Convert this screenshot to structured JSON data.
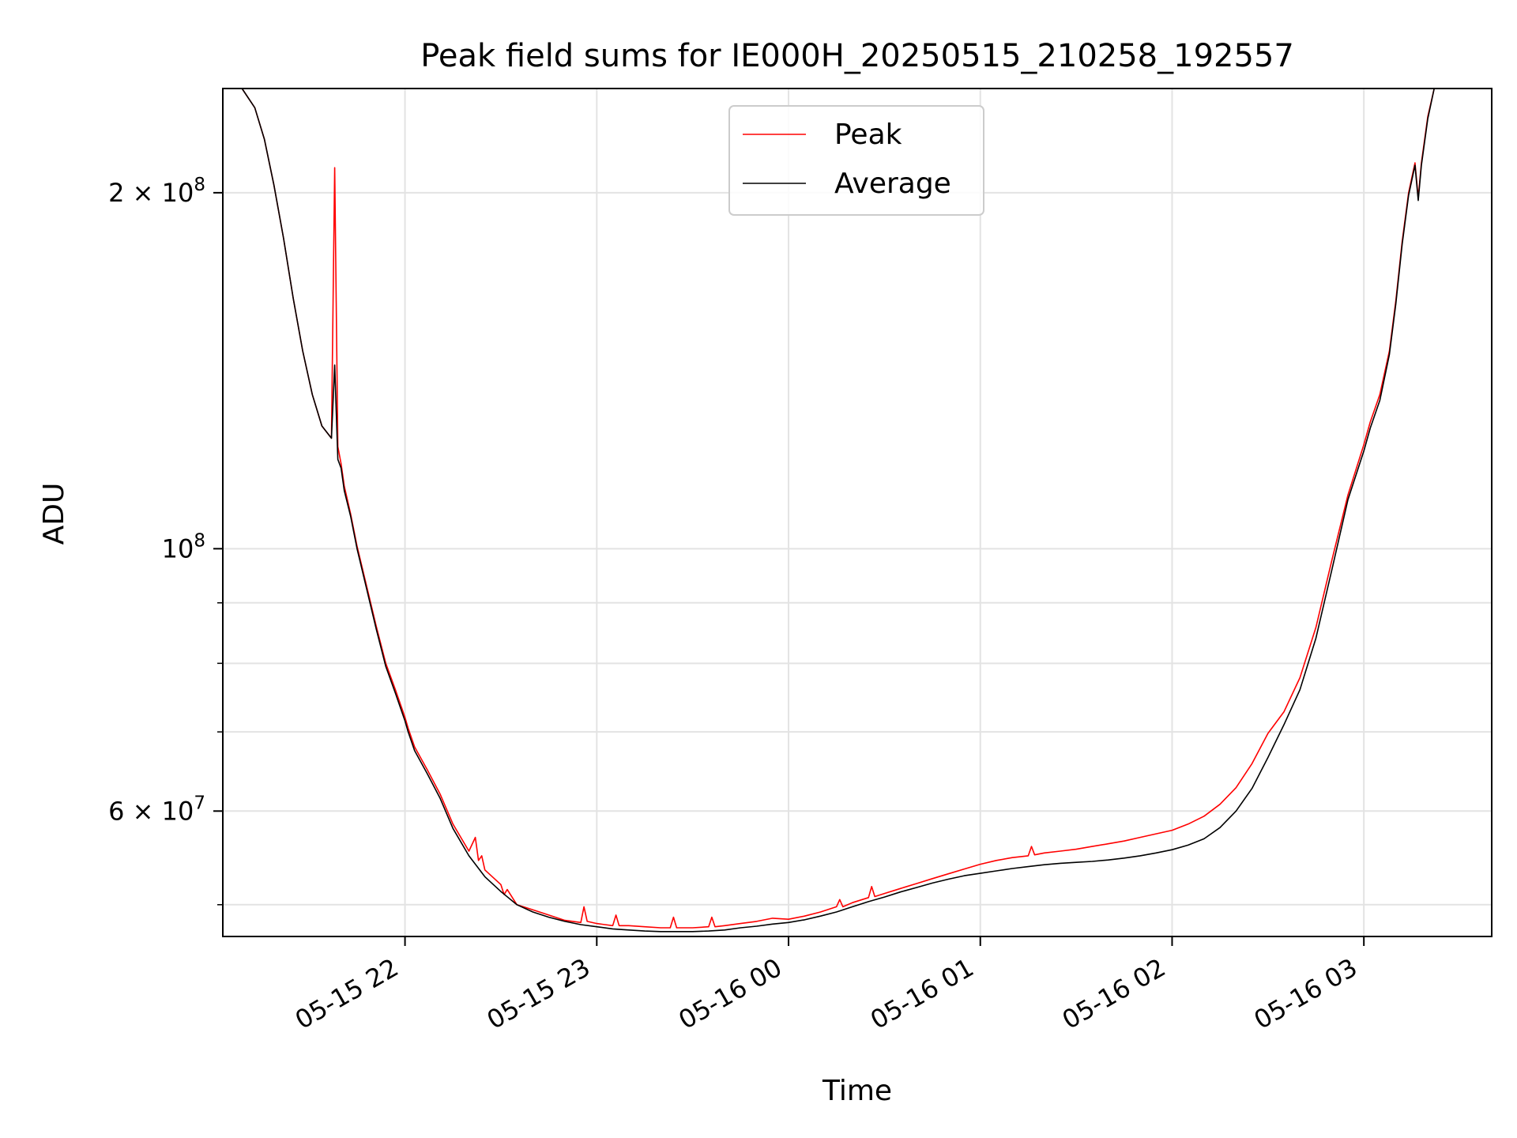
{
  "chart_data": {
    "type": "line",
    "title": "Peak field sums for IE000H_20250515_210258_192557",
    "xlabel": "Time",
    "ylabel": "ADU",
    "y_scale": "log",
    "xlim": [
      "2025-05-15T21:03",
      "2025-05-16T03:40"
    ],
    "ylim": [
      47000000,
      245000000
    ],
    "x_ticks": [
      {
        "value": "2025-05-15T22:00",
        "label": "05-15 22"
      },
      {
        "value": "2025-05-15T23:00",
        "label": "05-15 23"
      },
      {
        "value": "2025-05-16T00:00",
        "label": "05-16 00"
      },
      {
        "value": "2025-05-16T01:00",
        "label": "05-16 01"
      },
      {
        "value": "2025-05-16T02:00",
        "label": "05-16 02"
      },
      {
        "value": "2025-05-16T03:00",
        "label": "05-16 03"
      }
    ],
    "y_ticks": [
      {
        "value": 200000000,
        "mantissa": "2",
        "exponent": "8"
      },
      {
        "value": 100000000,
        "mantissa": "",
        "exponent": "8"
      },
      {
        "value": 60000000,
        "mantissa": "6",
        "exponent": "7"
      }
    ],
    "y_minor_grid": [
      50000000,
      70000000,
      80000000,
      90000000
    ],
    "grid": true,
    "legend_position": "top-center",
    "series": [
      {
        "name": "Peak",
        "color": "#ff0000",
        "x": [
          "2025-05-15T21:09",
          "2025-05-15T21:13",
          "2025-05-15T21:16",
          "2025-05-15T21:19",
          "2025-05-15T21:22",
          "2025-05-15T21:25",
          "2025-05-15T21:28",
          "2025-05-15T21:31",
          "2025-05-15T21:34",
          "2025-05-15T21:37",
          "2025-05-15T21:38",
          "2025-05-15T21:39",
          "2025-05-15T21:40",
          "2025-05-15T21:41",
          "2025-05-15T21:43",
          "2025-05-15T21:45",
          "2025-05-15T21:48",
          "2025-05-15T21:51",
          "2025-05-15T21:54",
          "2025-05-15T21:57",
          "2025-05-15T22:00",
          "2025-05-15T22:01",
          "2025-05-15T22:03",
          "2025-05-15T22:07",
          "2025-05-15T22:11",
          "2025-05-15T22:15",
          "2025-05-15T22:20",
          "2025-05-15T22:22",
          "2025-05-15T22:23",
          "2025-05-15T22:24",
          "2025-05-15T22:25",
          "2025-05-15T22:30",
          "2025-05-15T22:31",
          "2025-05-15T22:32",
          "2025-05-15T22:35",
          "2025-05-15T22:40",
          "2025-05-15T22:45",
          "2025-05-15T22:50",
          "2025-05-15T22:55",
          "2025-05-15T22:56",
          "2025-05-15T22:57",
          "2025-05-15T23:00",
          "2025-05-15T23:05",
          "2025-05-15T23:06",
          "2025-05-15T23:07",
          "2025-05-15T23:10",
          "2025-05-15T23:15",
          "2025-05-15T23:20",
          "2025-05-15T23:23",
          "2025-05-15T23:24",
          "2025-05-15T23:25",
          "2025-05-15T23:30",
          "2025-05-15T23:35",
          "2025-05-15T23:36",
          "2025-05-15T23:37",
          "2025-05-15T23:40",
          "2025-05-15T23:45",
          "2025-05-15T23:50",
          "2025-05-15T23:55",
          "2025-05-16T00:00",
          "2025-05-16T00:05",
          "2025-05-16T00:10",
          "2025-05-16T00:15",
          "2025-05-16T00:16",
          "2025-05-16T00:17",
          "2025-05-16T00:20",
          "2025-05-16T00:25",
          "2025-05-16T00:26",
          "2025-05-16T00:27",
          "2025-05-16T00:30",
          "2025-05-16T00:35",
          "2025-05-16T00:40",
          "2025-05-16T00:45",
          "2025-05-16T00:50",
          "2025-05-16T00:55",
          "2025-05-16T01:00",
          "2025-05-16T01:05",
          "2025-05-16T01:10",
          "2025-05-16T01:15",
          "2025-05-16T01:16",
          "2025-05-16T01:17",
          "2025-05-16T01:20",
          "2025-05-16T01:25",
          "2025-05-16T01:30",
          "2025-05-16T01:35",
          "2025-05-16T01:40",
          "2025-05-16T01:45",
          "2025-05-16T01:50",
          "2025-05-16T01:55",
          "2025-05-16T02:00",
          "2025-05-16T02:05",
          "2025-05-16T02:10",
          "2025-05-16T02:15",
          "2025-05-16T02:20",
          "2025-05-16T02:25",
          "2025-05-16T02:30",
          "2025-05-16T02:35",
          "2025-05-16T02:40",
          "2025-05-16T02:45",
          "2025-05-16T02:50",
          "2025-05-16T02:55",
          "2025-05-16T03:00",
          "2025-05-16T03:02",
          "2025-05-16T03:05",
          "2025-05-16T03:08",
          "2025-05-16T03:10",
          "2025-05-16T03:12",
          "2025-05-16T03:14",
          "2025-05-16T03:16",
          "2025-05-16T03:17",
          "2025-05-16T03:18",
          "2025-05-16T03:20",
          "2025-05-16T03:22",
          "2025-05-16T03:25"
        ],
        "y": [
          245000000,
          236000000,
          222000000,
          203000000,
          183000000,
          163000000,
          147000000,
          135000000,
          127000000,
          124000000,
          210000000,
          122000000,
          118000000,
          113000000,
          107000000,
          100500000,
          93000000,
          86000000,
          80000000,
          76000000,
          72000000,
          70500000,
          68000000,
          65000000,
          62000000,
          58500000,
          55500000,
          57000000,
          54500000,
          55000000,
          53500000,
          52000000,
          51000000,
          51500000,
          50000000,
          49500000,
          49000000,
          48500000,
          48300000,
          49800000,
          48400000,
          48200000,
          48000000,
          49000000,
          48000000,
          48000000,
          47900000,
          47800000,
          47800000,
          48800000,
          47800000,
          47800000,
          47900000,
          48800000,
          47900000,
          48000000,
          48200000,
          48400000,
          48700000,
          48600000,
          48900000,
          49300000,
          49800000,
          50500000,
          49800000,
          50200000,
          50700000,
          51800000,
          50800000,
          51100000,
          51600000,
          52100000,
          52600000,
          53100000,
          53600000,
          54100000,
          54500000,
          54800000,
          55000000,
          56000000,
          55100000,
          55300000,
          55500000,
          55700000,
          56000000,
          56300000,
          56600000,
          57000000,
          57400000,
          57800000,
          58500000,
          59400000,
          60800000,
          62800000,
          65800000,
          69800000,
          72800000,
          77800000,
          85800000,
          97800000,
          111000000,
          122500000,
          128000000,
          135000000,
          147000000,
          162000000,
          182000000,
          200000000,
          212000000,
          198000000,
          212000000,
          232000000,
          245000000,
          245000000
        ]
      },
      {
        "name": "Average",
        "color": "#000000",
        "x": [
          "2025-05-15T21:09",
          "2025-05-15T21:13",
          "2025-05-15T21:16",
          "2025-05-15T21:19",
          "2025-05-15T21:22",
          "2025-05-15T21:25",
          "2025-05-15T21:28",
          "2025-05-15T21:31",
          "2025-05-15T21:34",
          "2025-05-15T21:37",
          "2025-05-15T21:38",
          "2025-05-15T21:39",
          "2025-05-15T21:40",
          "2025-05-15T21:41",
          "2025-05-15T21:43",
          "2025-05-15T21:45",
          "2025-05-15T21:48",
          "2025-05-15T21:51",
          "2025-05-15T21:54",
          "2025-05-15T21:57",
          "2025-05-15T22:00",
          "2025-05-15T22:01",
          "2025-05-15T22:03",
          "2025-05-15T22:07",
          "2025-05-15T22:11",
          "2025-05-15T22:15",
          "2025-05-15T22:20",
          "2025-05-15T22:25",
          "2025-05-15T22:30",
          "2025-05-15T22:35",
          "2025-05-15T22:40",
          "2025-05-15T22:45",
          "2025-05-15T22:50",
          "2025-05-15T22:55",
          "2025-05-15T23:00",
          "2025-05-15T23:05",
          "2025-05-15T23:10",
          "2025-05-15T23:15",
          "2025-05-15T23:20",
          "2025-05-15T23:25",
          "2025-05-15T23:30",
          "2025-05-15T23:35",
          "2025-05-15T23:40",
          "2025-05-15T23:45",
          "2025-05-15T23:50",
          "2025-05-15T23:55",
          "2025-05-16T00:00",
          "2025-05-16T00:05",
          "2025-05-16T00:10",
          "2025-05-16T00:15",
          "2025-05-16T00:20",
          "2025-05-16T00:25",
          "2025-05-16T00:30",
          "2025-05-16T00:35",
          "2025-05-16T00:40",
          "2025-05-16T00:45",
          "2025-05-16T00:50",
          "2025-05-16T00:55",
          "2025-05-16T01:00",
          "2025-05-16T01:05",
          "2025-05-16T01:10",
          "2025-05-16T01:15",
          "2025-05-16T01:20",
          "2025-05-16T01:25",
          "2025-05-16T01:30",
          "2025-05-16T01:35",
          "2025-05-16T01:40",
          "2025-05-16T01:45",
          "2025-05-16T01:50",
          "2025-05-16T01:55",
          "2025-05-16T02:00",
          "2025-05-16T02:05",
          "2025-05-16T02:10",
          "2025-05-16T02:15",
          "2025-05-16T02:20",
          "2025-05-16T02:25",
          "2025-05-16T02:30",
          "2025-05-16T02:35",
          "2025-05-16T02:40",
          "2025-05-16T02:45",
          "2025-05-16T02:50",
          "2025-05-16T02:55",
          "2025-05-16T03:00",
          "2025-05-16T03:02",
          "2025-05-16T03:05",
          "2025-05-16T03:08",
          "2025-05-16T03:10",
          "2025-05-16T03:12",
          "2025-05-16T03:14",
          "2025-05-16T03:16",
          "2025-05-16T03:17",
          "2025-05-16T03:18",
          "2025-05-16T03:20",
          "2025-05-16T03:22",
          "2025-05-16T03:25"
        ],
        "y": [
          245000000,
          236000000,
          222000000,
          203000000,
          183000000,
          163000000,
          147000000,
          135000000,
          127000000,
          124000000,
          143000000,
          119000000,
          117000000,
          112000000,
          106500000,
          100000000,
          92500000,
          85500000,
          79500000,
          75500000,
          71500000,
          70000000,
          67500000,
          64500000,
          61500000,
          58000000,
          55000000,
          52800000,
          51300000,
          50000000,
          49300000,
          48800000,
          48400000,
          48100000,
          47900000,
          47700000,
          47600000,
          47500000,
          47450000,
          47450000,
          47450000,
          47500000,
          47600000,
          47800000,
          47950000,
          48150000,
          48300000,
          48550000,
          48900000,
          49300000,
          49800000,
          50300000,
          50750000,
          51250000,
          51700000,
          52150000,
          52550000,
          52900000,
          53150000,
          53400000,
          53650000,
          53850000,
          54050000,
          54200000,
          54300000,
          54400000,
          54550000,
          54750000,
          55000000,
          55300000,
          55650000,
          56150000,
          56850000,
          58100000,
          60000000,
          62700000,
          66600000,
          71000000,
          76000000,
          84000000,
          96000000,
          110000000,
          121000000,
          126500000,
          133500000,
          146000000,
          161000000,
          181000000,
          199000000,
          211000000,
          197000000,
          211000000,
          231000000,
          245000000,
          245000000
        ]
      }
    ]
  }
}
